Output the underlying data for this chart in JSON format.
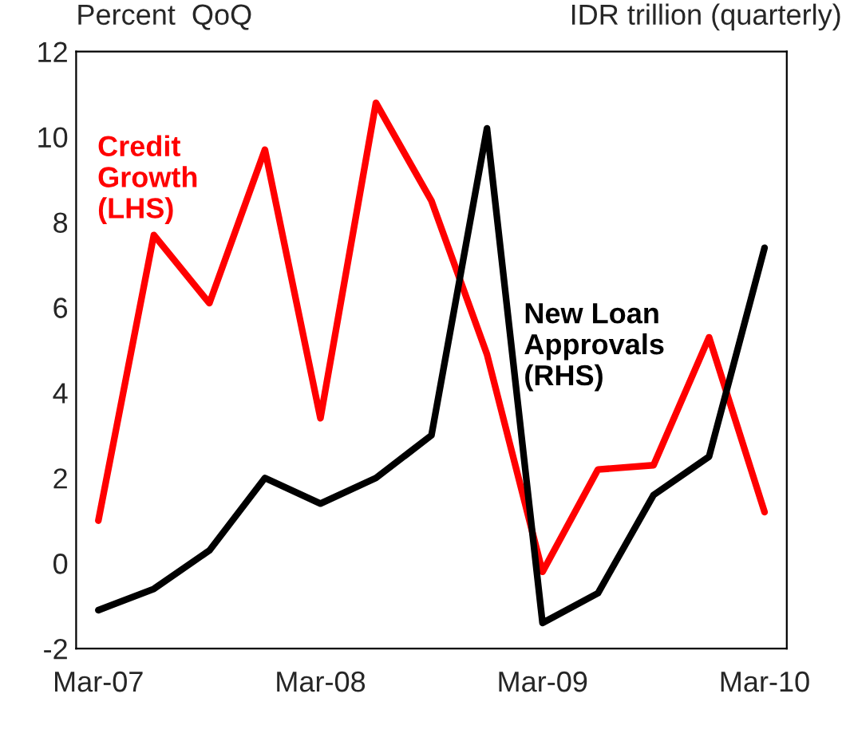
{
  "chart_data": {
    "type": "line",
    "ylabel": "Percent  QoQ",
    "y2label": "IDR trillion (quarterly)",
    "categories": [
      "Mar-07",
      null,
      null,
      null,
      "Mar-08",
      null,
      null,
      null,
      "Mar-09",
      null,
      null,
      null,
      "Mar-10"
    ],
    "ylim": [
      -2,
      12
    ],
    "yticks": [
      -2,
      0,
      2,
      4,
      6,
      8,
      10,
      12
    ],
    "grid": false,
    "legend": false,
    "marker": "none",
    "line_style": "solid",
    "series": [
      {
        "name": "Credit\nGrowth\n(LHS)",
        "color": "#ff0000",
        "values": [
          1.0,
          7.7,
          6.1,
          9.7,
          3.4,
          10.8,
          8.5,
          4.9,
          -0.2,
          2.2,
          2.3,
          5.3,
          1.2
        ]
      },
      {
        "name": "New Loan\nApprovals\n(RHS)",
        "color": "#000000",
        "values": [
          -1.1,
          -0.6,
          0.3,
          2.0,
          1.4,
          2.0,
          3.0,
          10.2,
          -1.4,
          -0.7,
          1.6,
          2.5,
          7.4
        ]
      }
    ]
  }
}
